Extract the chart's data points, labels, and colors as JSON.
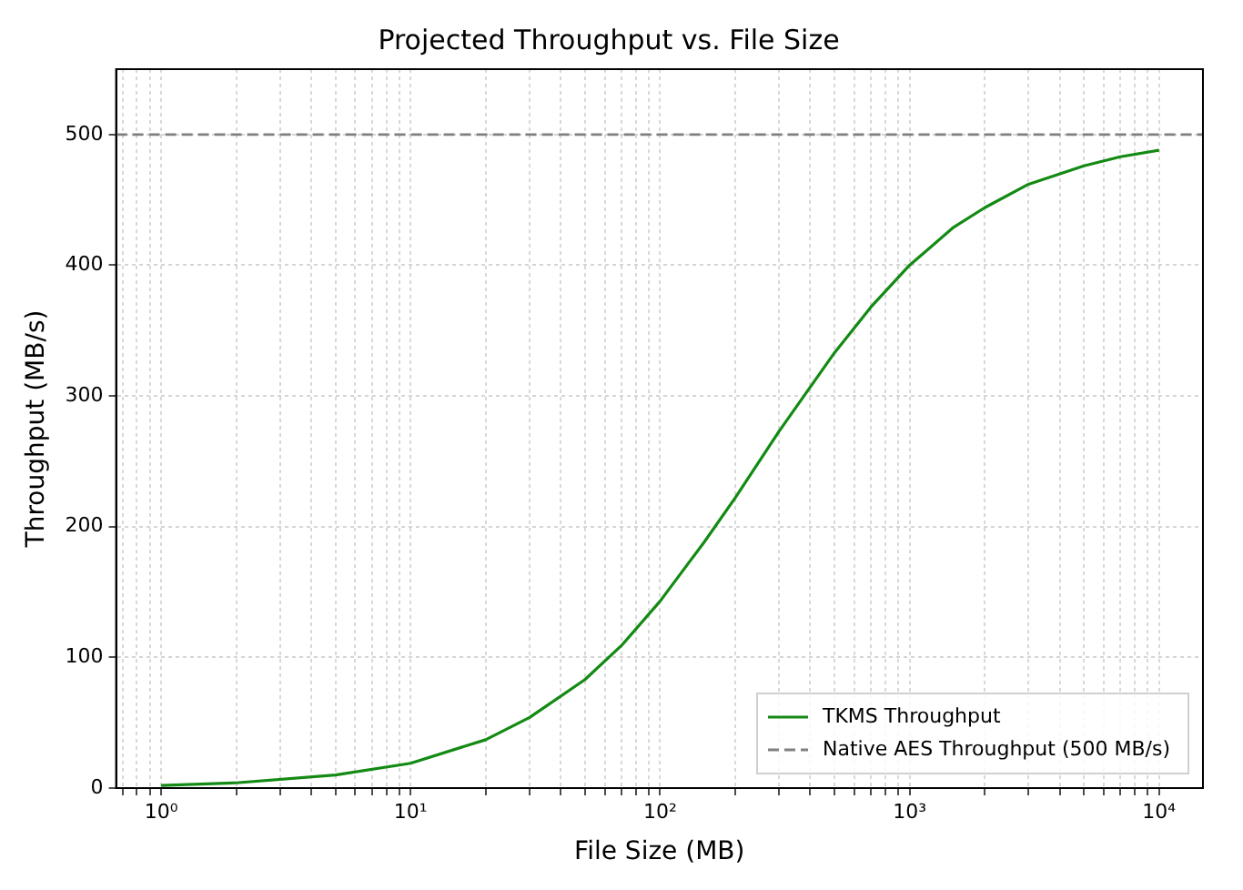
{
  "chart_data": {
    "type": "line",
    "title": "Projected Throughput vs. File Size",
    "xlabel": "File Size (MB)",
    "ylabel": "Throughput (MB/s)",
    "x": [
      1,
      2,
      5,
      10,
      20,
      30,
      50,
      70,
      100,
      150,
      200,
      300,
      500,
      700,
      1000,
      1500,
      2000,
      3000,
      5000,
      7000,
      10000
    ],
    "series": [
      {
        "name": "TKMS Throughput",
        "color": "#138a13",
        "values": [
          2,
          4,
          10,
          19,
          37,
          54,
          83,
          109,
          143,
          188,
          222,
          273,
          333,
          368,
          400,
          429,
          444,
          462,
          476,
          483,
          488
        ]
      }
    ],
    "ref_lines": [
      {
        "axis": "y",
        "value": 500,
        "label": "Native AES Throughput (500 MB/s)",
        "color": "#808080",
        "line_style": "dashed"
      }
    ],
    "log": "x",
    "xlim": [
      0.66,
      15000
    ],
    "ylim": [
      0,
      550
    ],
    "xticks": [
      {
        "value": 0.7,
        "label": null
      },
      {
        "value": 0.8,
        "label": null
      },
      {
        "value": 0.9,
        "label": null
      },
      {
        "value": 1,
        "label": "10⁰"
      },
      {
        "value": 2,
        "label": null
      },
      {
        "value": 3,
        "label": null
      },
      {
        "value": 4,
        "label": null
      },
      {
        "value": 5,
        "label": null
      },
      {
        "value": 6,
        "label": null
      },
      {
        "value": 7,
        "label": null
      },
      {
        "value": 8,
        "label": null
      },
      {
        "value": 9,
        "label": null
      },
      {
        "value": 10,
        "label": "10¹"
      },
      {
        "value": 20,
        "label": null
      },
      {
        "value": 30,
        "label": null
      },
      {
        "value": 40,
        "label": null
      },
      {
        "value": 50,
        "label": null
      },
      {
        "value": 60,
        "label": null
      },
      {
        "value": 70,
        "label": null
      },
      {
        "value": 80,
        "label": null
      },
      {
        "value": 90,
        "label": null
      },
      {
        "value": 100,
        "label": "10²"
      },
      {
        "value": 200,
        "label": null
      },
      {
        "value": 300,
        "label": null
      },
      {
        "value": 400,
        "label": null
      },
      {
        "value": 500,
        "label": null
      },
      {
        "value": 600,
        "label": null
      },
      {
        "value": 700,
        "label": null
      },
      {
        "value": 800,
        "label": null
      },
      {
        "value": 900,
        "label": null
      },
      {
        "value": 1000,
        "label": "10³"
      },
      {
        "value": 2000,
        "label": null
      },
      {
        "value": 3000,
        "label": null
      },
      {
        "value": 4000,
        "label": null
      },
      {
        "value": 5000,
        "label": null
      },
      {
        "value": 6000,
        "label": null
      },
      {
        "value": 7000,
        "label": null
      },
      {
        "value": 8000,
        "label": null
      },
      {
        "value": 9000,
        "label": null
      },
      {
        "value": 10000,
        "label": "10⁴"
      }
    ],
    "yticks": [
      0,
      100,
      200,
      300,
      400,
      500
    ],
    "grid": true,
    "legend": "bottom right",
    "marker": "none",
    "line_style": "solid"
  }
}
